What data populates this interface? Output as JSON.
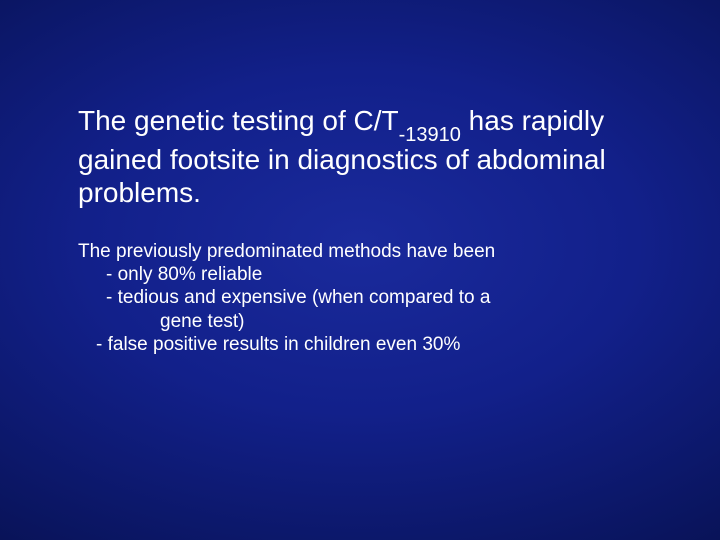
{
  "slide": {
    "background": {
      "center_color": "#1a2a9c",
      "mid_color": "#12208a",
      "outer_color": "#0a1560",
      "edge_color": "#050a3a"
    },
    "text_color": "#ffffff",
    "title": {
      "pre": "The genetic testing of C/T",
      "subscript": "-13910",
      "post": " has rapidly gained footsite in diagnostics of abdominal problems.",
      "fontsize": 28
    },
    "body": {
      "fontsize": 19,
      "lead": "The previously predominated methods have been",
      "bullet1": "- only 80% reliable",
      "bullet2_line1": "- tedious and expensive (when compared to a",
      "bullet2_line2": "gene test)",
      "bullet3": "- false positive results in children even 30%"
    }
  }
}
